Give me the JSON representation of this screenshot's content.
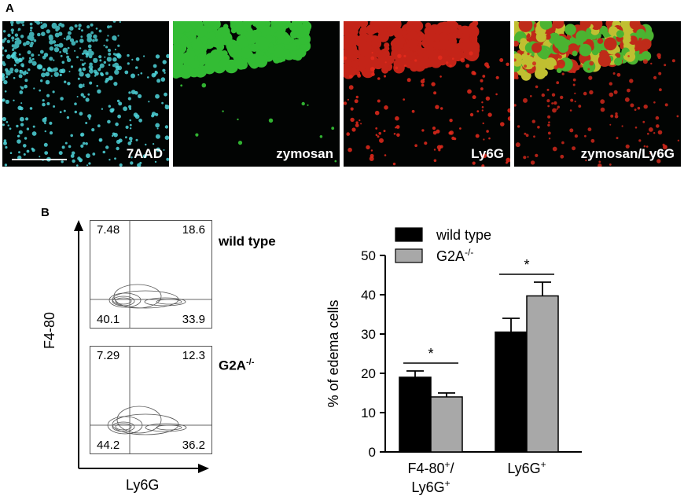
{
  "panel_a": {
    "letter": "A",
    "images": [
      {
        "label": "7AAD",
        "color": "#4fd6dc"
      },
      {
        "label": "zymosan",
        "color": "#39d13a"
      },
      {
        "label": "Ly6G",
        "color": "#e62a1c"
      },
      {
        "label": "zymosan/Ly6G",
        "color": "#e8e23a"
      }
    ]
  },
  "panel_b": {
    "letter": "B",
    "flow": {
      "y_label": "F4-80",
      "x_label": "Ly6G",
      "plots": [
        {
          "genotype": "wild type",
          "genotype_sup": "",
          "ul": "7.48",
          "ur": "18.6",
          "ll": "40.1",
          "lr": "33.9"
        },
        {
          "genotype": "G2A",
          "genotype_sup": "-/-",
          "ul": "7.29",
          "ur": "12.3",
          "ll": "44.2",
          "lr": "36.2"
        }
      ]
    },
    "bar": {
      "ylabel": "% of edema cells",
      "legend": [
        {
          "name": "wild type",
          "sup": "",
          "color": "#000000"
        },
        {
          "name": "G2A",
          "sup": "-/-",
          "color": "#a8a8a8"
        }
      ],
      "category_labels": [
        {
          "line1": "F4-80",
          "line1_sup": "+",
          "line1_end": "/",
          "line2": "Ly6G",
          "line2_sup": "+"
        },
        {
          "line1": "Ly6G",
          "line1_sup": "+",
          "line1_end": "",
          "line2": "",
          "line2_sup": ""
        }
      ],
      "significance": [
        "*",
        "*"
      ]
    }
  },
  "chart_data": {
    "type": "bar",
    "categories": [
      "F4-80+/Ly6G+",
      "Ly6G+"
    ],
    "series": [
      {
        "name": "wild type",
        "values": [
          19,
          30.5
        ],
        "errors": [
          1.6,
          3.5
        ]
      },
      {
        "name": "G2A-/-",
        "values": [
          14,
          39.7
        ],
        "errors": [
          1.0,
          3.5
        ]
      }
    ],
    "ylabel": "% of edema cells",
    "ylim": [
      0,
      50
    ],
    "yticks": [
      0,
      10,
      20,
      30,
      40,
      50
    ],
    "legend_position": "top",
    "grid": false
  }
}
